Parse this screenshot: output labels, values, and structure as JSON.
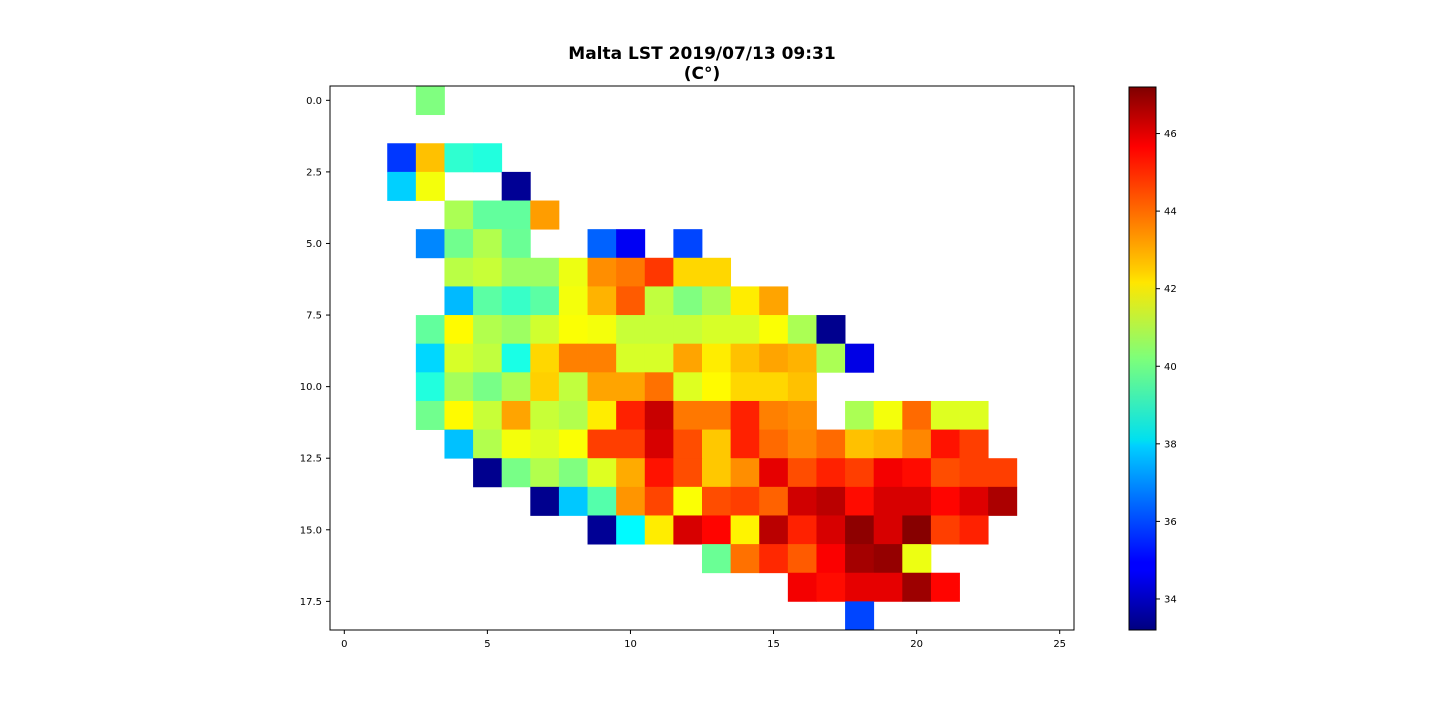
{
  "chart_data": {
    "type": "heatmap",
    "title": "Malta LST 2019/07/13 09:31",
    "subtitle": "(C°)",
    "xlabel": "",
    "ylabel": "",
    "colormap": "jet",
    "xlim": [
      -0.5,
      25.5
    ],
    "ylim": [
      18.5,
      -0.5
    ],
    "xticks": [
      "0",
      "5",
      "10",
      "15",
      "20",
      "25"
    ],
    "yticks": [
      "0.0",
      "2.5",
      "5.0",
      "7.5",
      "10.0",
      "12.5",
      "15.0",
      "17.5"
    ],
    "colorbar": {
      "range": [
        33.2,
        47.2
      ],
      "ticks": [
        "34",
        "36",
        "38",
        "40",
        "42",
        "44",
        "46"
      ]
    },
    "cells": [
      {
        "row": 0,
        "values": [
          [
            3,
            40.2
          ]
        ]
      },
      {
        "row": 2,
        "values": [
          [
            2,
            35.7
          ],
          [
            3,
            42.8
          ],
          [
            4,
            39.1
          ],
          [
            5,
            38.9
          ]
        ]
      },
      {
        "row": 3,
        "values": [
          [
            2,
            37.8
          ],
          [
            3,
            41.8
          ],
          [
            6,
            33.5
          ]
        ]
      },
      {
        "row": 4,
        "values": [
          [
            4,
            40.8
          ],
          [
            5,
            39.8
          ],
          [
            6,
            39.8
          ],
          [
            7,
            43.3
          ]
        ]
      },
      {
        "row": 5,
        "values": [
          [
            3,
            36.8
          ],
          [
            4,
            40.0
          ],
          [
            5,
            40.9
          ],
          [
            6,
            39.9
          ],
          [
            9,
            36.3
          ],
          [
            10,
            34.8
          ],
          [
            12,
            35.9
          ]
        ]
      },
      {
        "row": 6,
        "values": [
          [
            4,
            41.0
          ],
          [
            5,
            41.2
          ],
          [
            6,
            40.6
          ],
          [
            7,
            40.6
          ],
          [
            8,
            41.7
          ],
          [
            9,
            43.5
          ],
          [
            10,
            43.8
          ],
          [
            11,
            44.7
          ],
          [
            12,
            42.5
          ],
          [
            13,
            42.5
          ]
        ]
      },
      {
        "row": 7,
        "values": [
          [
            4,
            37.5
          ],
          [
            5,
            39.7
          ],
          [
            6,
            39.2
          ],
          [
            7,
            39.7
          ],
          [
            8,
            41.8
          ],
          [
            9,
            43.0
          ],
          [
            10,
            44.2
          ],
          [
            11,
            41.1
          ],
          [
            12,
            40.2
          ],
          [
            13,
            40.8
          ],
          [
            14,
            42.2
          ],
          [
            15,
            43.2
          ]
        ]
      },
      {
        "row": 8,
        "values": [
          [
            3,
            39.8
          ],
          [
            4,
            42.0
          ],
          [
            5,
            40.9
          ],
          [
            6,
            40.6
          ],
          [
            7,
            41.3
          ],
          [
            8,
            41.9
          ],
          [
            9,
            41.8
          ],
          [
            10,
            41.2
          ],
          [
            11,
            41.2
          ],
          [
            12,
            41.2
          ],
          [
            13,
            41.4
          ],
          [
            14,
            41.4
          ],
          [
            15,
            41.9
          ],
          [
            16,
            40.8
          ],
          [
            17,
            33.4
          ]
        ]
      },
      {
        "row": 9,
        "values": [
          [
            3,
            37.9
          ],
          [
            4,
            41.4
          ],
          [
            5,
            41.1
          ],
          [
            6,
            38.8
          ],
          [
            7,
            42.5
          ],
          [
            8,
            43.7
          ],
          [
            9,
            43.7
          ],
          [
            10,
            41.4
          ],
          [
            11,
            41.4
          ],
          [
            12,
            43.2
          ],
          [
            13,
            42.2
          ],
          [
            14,
            42.8
          ],
          [
            15,
            43.2
          ],
          [
            16,
            43.0
          ],
          [
            17,
            40.8
          ],
          [
            18,
            34.6
          ]
        ]
      },
      {
        "row": 10,
        "values": [
          [
            3,
            38.9
          ],
          [
            4,
            40.7
          ],
          [
            5,
            40.1
          ],
          [
            6,
            40.8
          ],
          [
            7,
            42.6
          ],
          [
            8,
            41.1
          ],
          [
            9,
            43.2
          ],
          [
            10,
            43.2
          ],
          [
            11,
            43.9
          ],
          [
            12,
            41.5
          ],
          [
            13,
            42.0
          ],
          [
            14,
            42.5
          ],
          [
            15,
            42.5
          ],
          [
            16,
            42.8
          ]
        ]
      },
      {
        "row": 11,
        "values": [
          [
            3,
            40.0
          ],
          [
            4,
            42.0
          ],
          [
            5,
            41.2
          ],
          [
            6,
            43.2
          ],
          [
            7,
            41.2
          ],
          [
            8,
            40.9
          ],
          [
            9,
            42.2
          ],
          [
            10,
            45.0
          ],
          [
            11,
            46.2
          ],
          [
            12,
            43.8
          ],
          [
            13,
            43.8
          ],
          [
            14,
            45.0
          ],
          [
            15,
            43.7
          ],
          [
            16,
            43.5
          ],
          [
            18,
            40.8
          ],
          [
            19,
            41.8
          ],
          [
            20,
            44.0
          ],
          [
            21,
            41.5
          ],
          [
            22,
            41.5
          ]
        ]
      },
      {
        "row": 12,
        "values": [
          [
            4,
            37.6
          ],
          [
            5,
            40.9
          ],
          [
            6,
            41.8
          ],
          [
            7,
            41.5
          ],
          [
            8,
            41.9
          ],
          [
            9,
            44.6
          ],
          [
            10,
            44.6
          ],
          [
            11,
            46.0
          ],
          [
            12,
            44.4
          ],
          [
            13,
            42.7
          ],
          [
            14,
            45.0
          ],
          [
            15,
            44.0
          ],
          [
            16,
            43.6
          ],
          [
            17,
            44.0
          ],
          [
            18,
            42.8
          ],
          [
            19,
            43.0
          ],
          [
            20,
            43.6
          ],
          [
            21,
            45.2
          ],
          [
            22,
            44.6
          ]
        ]
      },
      {
        "row": 13,
        "values": [
          [
            5,
            33.4
          ],
          [
            6,
            40.1
          ],
          [
            7,
            40.9
          ],
          [
            8,
            40.2
          ],
          [
            9,
            41.5
          ],
          [
            10,
            43.1
          ],
          [
            11,
            45.2
          ],
          [
            12,
            44.4
          ],
          [
            13,
            42.7
          ],
          [
            14,
            43.5
          ],
          [
            15,
            45.8
          ],
          [
            16,
            44.4
          ],
          [
            17,
            45.0
          ],
          [
            18,
            44.6
          ],
          [
            19,
            45.6
          ],
          [
            20,
            45.3
          ],
          [
            21,
            44.4
          ],
          [
            22,
            44.6
          ],
          [
            23,
            44.6
          ]
        ]
      },
      {
        "row": 14,
        "values": [
          [
            7,
            33.4
          ],
          [
            8,
            37.7
          ],
          [
            9,
            39.6
          ],
          [
            10,
            43.4
          ],
          [
            11,
            44.5
          ],
          [
            12,
            41.9
          ],
          [
            13,
            44.4
          ],
          [
            14,
            44.6
          ],
          [
            15,
            44.1
          ],
          [
            16,
            46.1
          ],
          [
            17,
            46.4
          ],
          [
            18,
            45.3
          ],
          [
            19,
            46.0
          ],
          [
            20,
            46.0
          ],
          [
            21,
            45.4
          ],
          [
            22,
            45.9
          ],
          [
            23,
            46.6
          ]
        ]
      },
      {
        "row": 15,
        "values": [
          [
            9,
            33.5
          ],
          [
            10,
            38.4
          ],
          [
            11,
            42.2
          ],
          [
            12,
            46.0
          ],
          [
            13,
            45.4
          ],
          [
            14,
            42.1
          ],
          [
            15,
            46.4
          ],
          [
            16,
            45.0
          ],
          [
            17,
            46.0
          ],
          [
            18,
            47.0
          ],
          [
            19,
            46.0
          ],
          [
            20,
            47.1
          ],
          [
            21,
            44.6
          ],
          [
            22,
            45.0
          ]
        ]
      },
      {
        "row": 16,
        "values": [
          [
            13,
            39.9
          ],
          [
            14,
            43.9
          ],
          [
            15,
            44.9
          ],
          [
            16,
            44.2
          ],
          [
            17,
            45.5
          ],
          [
            18,
            46.7
          ],
          [
            19,
            46.9
          ],
          [
            20,
            41.7
          ]
        ]
      },
      {
        "row": 17,
        "values": [
          [
            16,
            45.6
          ],
          [
            17,
            45.3
          ],
          [
            18,
            45.8
          ],
          [
            19,
            45.8
          ],
          [
            20,
            46.8
          ],
          [
            21,
            45.4
          ]
        ]
      },
      {
        "row": 18,
        "values": [
          [
            18,
            35.9
          ]
        ]
      }
    ]
  }
}
